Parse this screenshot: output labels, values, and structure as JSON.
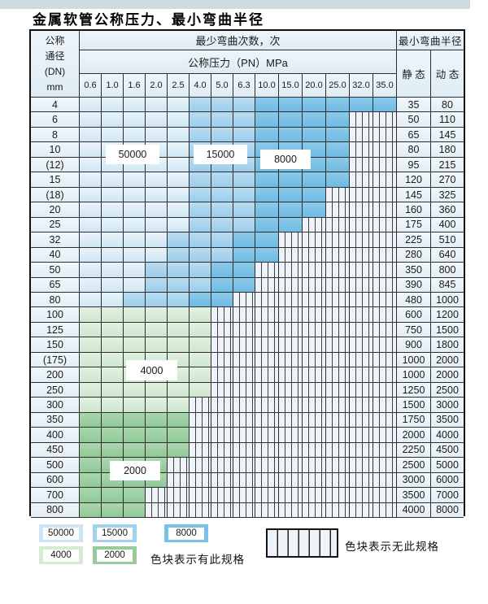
{
  "title": "金属软管公称压力、最小弯曲半径",
  "table": {
    "header": {
      "dn_lines": [
        "公称",
        "通径",
        "(DN)",
        "mm"
      ],
      "bend_times_label": "最少弯曲次数，次",
      "pressure_label": "公称压力（PN）MPa",
      "pressure_values": [
        "0.6",
        "1.0",
        "1.6",
        "2.0",
        "2.5",
        "4.0",
        "5.0",
        "6.3",
        "10.0",
        "15.0",
        "20.0",
        "25.0",
        "32.0",
        "35.0"
      ],
      "radius_label": "最小弯曲半径",
      "static_label": "静 态",
      "dynamic_label": "动 态"
    },
    "rows": [
      {
        "dn": "4",
        "st": "35",
        "dy": "80",
        "bands": [
          [
            "50000",
            1,
            5
          ],
          [
            "15000",
            6,
            8
          ],
          [
            "8000",
            9,
            14
          ]
        ]
      },
      {
        "dn": "6",
        "st": "50",
        "dy": "110",
        "bands": [
          [
            "50000",
            1,
            5
          ],
          [
            "15000",
            6,
            8
          ],
          [
            "8000",
            9,
            12
          ]
        ]
      },
      {
        "dn": "8",
        "st": "65",
        "dy": "145",
        "bands": [
          [
            "50000",
            1,
            5
          ],
          [
            "15000",
            6,
            8
          ],
          [
            "8000",
            9,
            12
          ]
        ]
      },
      {
        "dn": "10",
        "st": "80",
        "dy": "180",
        "bands": [
          [
            "50000",
            1,
            5
          ],
          [
            "15000",
            6,
            8
          ],
          [
            "8000",
            9,
            12
          ]
        ]
      },
      {
        "dn": "(12)",
        "st": "95",
        "dy": "215",
        "bands": [
          [
            "50000",
            1,
            5
          ],
          [
            "15000",
            6,
            8
          ],
          [
            "8000",
            9,
            12
          ]
        ]
      },
      {
        "dn": "15",
        "st": "120",
        "dy": "270",
        "bands": [
          [
            "50000",
            1,
            5
          ],
          [
            "15000",
            6,
            8
          ],
          [
            "8000",
            9,
            12
          ]
        ]
      },
      {
        "dn": "(18)",
        "st": "145",
        "dy": "325",
        "bands": [
          [
            "50000",
            1,
            5
          ],
          [
            "15000",
            6,
            8
          ],
          [
            "8000",
            9,
            11
          ]
        ]
      },
      {
        "dn": "20",
        "st": "160",
        "dy": "360",
        "bands": [
          [
            "50000",
            1,
            5
          ],
          [
            "15000",
            6,
            8
          ],
          [
            "8000",
            9,
            11
          ]
        ]
      },
      {
        "dn": "25",
        "st": "175",
        "dy": "400",
        "bands": [
          [
            "50000",
            1,
            5
          ],
          [
            "15000",
            6,
            8
          ],
          [
            "8000",
            9,
            10
          ]
        ]
      },
      {
        "dn": "32",
        "st": "225",
        "dy": "510",
        "bands": [
          [
            "50000",
            1,
            4
          ],
          [
            "15000",
            5,
            7
          ],
          [
            "8000",
            8,
            9
          ]
        ]
      },
      {
        "dn": "40",
        "st": "280",
        "dy": "640",
        "bands": [
          [
            "50000",
            1,
            4
          ],
          [
            "15000",
            5,
            7
          ],
          [
            "8000",
            8,
            9
          ]
        ]
      },
      {
        "dn": "50",
        "st": "350",
        "dy": "800",
        "bands": [
          [
            "50000",
            1,
            3
          ],
          [
            "15000",
            4,
            6
          ],
          [
            "8000",
            7,
            8
          ]
        ]
      },
      {
        "dn": "65",
        "st": "390",
        "dy": "845",
        "bands": [
          [
            "50000",
            1,
            3
          ],
          [
            "15000",
            4,
            6
          ],
          [
            "8000",
            7,
            8
          ]
        ]
      },
      {
        "dn": "80",
        "st": "480",
        "dy": "1000",
        "bands": [
          [
            "50000",
            1,
            2
          ],
          [
            "15000",
            3,
            5
          ],
          [
            "8000",
            6,
            7
          ]
        ]
      },
      {
        "dn": "100",
        "st": "600",
        "dy": "1200",
        "bands": [
          [
            "4000",
            1,
            6
          ]
        ]
      },
      {
        "dn": "125",
        "st": "750",
        "dy": "1500",
        "bands": [
          [
            "4000",
            1,
            6
          ]
        ]
      },
      {
        "dn": "150",
        "st": "900",
        "dy": "1800",
        "bands": [
          [
            "4000",
            1,
            6
          ]
        ]
      },
      {
        "dn": "(175)",
        "st": "1000",
        "dy": "2000",
        "bands": [
          [
            "4000",
            1,
            6
          ]
        ]
      },
      {
        "dn": "200",
        "st": "1000",
        "dy": "2000",
        "bands": [
          [
            "4000",
            1,
            6
          ]
        ]
      },
      {
        "dn": "250",
        "st": "1250",
        "dy": "2500",
        "bands": [
          [
            "4000",
            1,
            6
          ]
        ]
      },
      {
        "dn": "300",
        "st": "1500",
        "dy": "3000",
        "bands": [
          [
            "4000",
            1,
            5
          ]
        ]
      },
      {
        "dn": "350",
        "st": "1750",
        "dy": "3500",
        "bands": [
          [
            "2000",
            1,
            5
          ]
        ]
      },
      {
        "dn": "400",
        "st": "2000",
        "dy": "4000",
        "bands": [
          [
            "2000",
            1,
            5
          ]
        ]
      },
      {
        "dn": "450",
        "st": "2250",
        "dy": "4500",
        "bands": [
          [
            "2000",
            1,
            5
          ]
        ]
      },
      {
        "dn": "500",
        "st": "2500",
        "dy": "5000",
        "bands": [
          [
            "2000",
            1,
            4
          ]
        ]
      },
      {
        "dn": "600",
        "st": "3000",
        "dy": "6000",
        "bands": [
          [
            "2000",
            1,
            4
          ]
        ]
      },
      {
        "dn": "700",
        "st": "3500",
        "dy": "7000",
        "bands": [
          [
            "2000",
            1,
            3
          ]
        ]
      },
      {
        "dn": "800",
        "st": "4000",
        "dy": "8000",
        "bands": [
          [
            "2000",
            1,
            3
          ]
        ]
      }
    ]
  },
  "overlay_labels": {
    "l50000": "50000",
    "l15000": "15000",
    "l8000": "8000",
    "l4000": "4000",
    "l2000": "2000"
  },
  "legend": {
    "swatch_50000": "50000",
    "swatch_15000": "15000",
    "swatch_8000": "8000",
    "swatch_4000": "4000",
    "swatch_2000": "2000",
    "has_spec_text": "色块表示有此规格",
    "no_spec_text": "色块表示无此规格"
  },
  "colors": {
    "band_50000": "#d9ebf7",
    "band_15000": "#a9d4ee",
    "band_8000": "#7bc2e7",
    "band_4000": "#d8ecd8",
    "band_2000": "#9dcfa2",
    "no_spec_bg": "#edf3f9",
    "grid_line": "#2d2d2d",
    "label_cell_bg": "#e9f2f8",
    "top_strip": "#cfdcdf"
  }
}
